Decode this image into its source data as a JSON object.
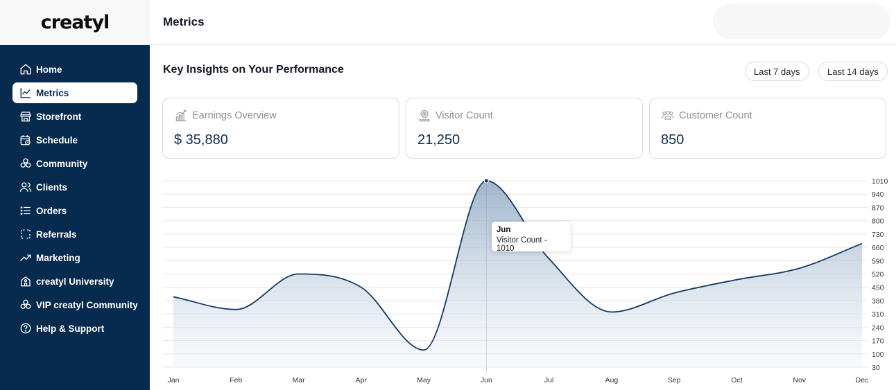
{
  "brand": {
    "logo": "creatyl"
  },
  "sidebar": {
    "items": [
      {
        "label": "Home",
        "icon": "home-icon"
      },
      {
        "label": "Metrics",
        "icon": "chart-line-icon",
        "active": true
      },
      {
        "label": "Storefront",
        "icon": "store-icon"
      },
      {
        "label": "Schedule",
        "icon": "calendar-clock-icon"
      },
      {
        "label": "Community",
        "icon": "community-icon"
      },
      {
        "label": "Clients",
        "icon": "users-icon"
      },
      {
        "label": "Orders",
        "icon": "list-icon"
      },
      {
        "label": "Referrals",
        "icon": "referral-icon"
      },
      {
        "label": "Marketing",
        "icon": "trending-up-icon"
      },
      {
        "label": "creatyl University",
        "icon": "school-icon"
      },
      {
        "label": "VIP creatyl Community",
        "icon": "community-icon"
      },
      {
        "label": "Help & Support",
        "icon": "help-icon"
      }
    ]
  },
  "header": {
    "title": "Metrics"
  },
  "main": {
    "section_title": "Key Insights on Your Performance",
    "range_buttons": [
      "Last 7 days",
      "Last 14 days"
    ],
    "cards": [
      {
        "title": "Earnings Overview",
        "value": "$ 35,880",
        "icon": "bar-growth-icon"
      },
      {
        "title": "Visitor Count",
        "value": "21,250",
        "icon": "visitor-icon"
      },
      {
        "title": "Customer Count",
        "value": "850",
        "icon": "customers-icon"
      }
    ]
  },
  "tooltip": {
    "title": "Jun",
    "body": "Visitor Count - 1010"
  },
  "colors": {
    "sidebar": "#072a4f",
    "accent": "#0c2d52",
    "line": "#143a63"
  },
  "chart_data": {
    "type": "area",
    "categories": [
      "Jan",
      "Feb",
      "Mar",
      "Apr",
      "May",
      "Jun",
      "Jul",
      "Aug",
      "Sep",
      "Oct",
      "Nov",
      "Dec"
    ],
    "series": [
      {
        "name": "Visitor Count",
        "values": [
          400,
          333,
          520,
          450,
          120,
          1010,
          600,
          320,
          420,
          490,
          550,
          680
        ]
      }
    ],
    "y_ticks": [
      30,
      100,
      170,
      240,
      310,
      380,
      450,
      520,
      590,
      660,
      730,
      800,
      870,
      940,
      1010
    ],
    "ylim": [
      30,
      1010
    ],
    "y_axis_side": "right",
    "grid": true,
    "highlight": "Jun"
  }
}
